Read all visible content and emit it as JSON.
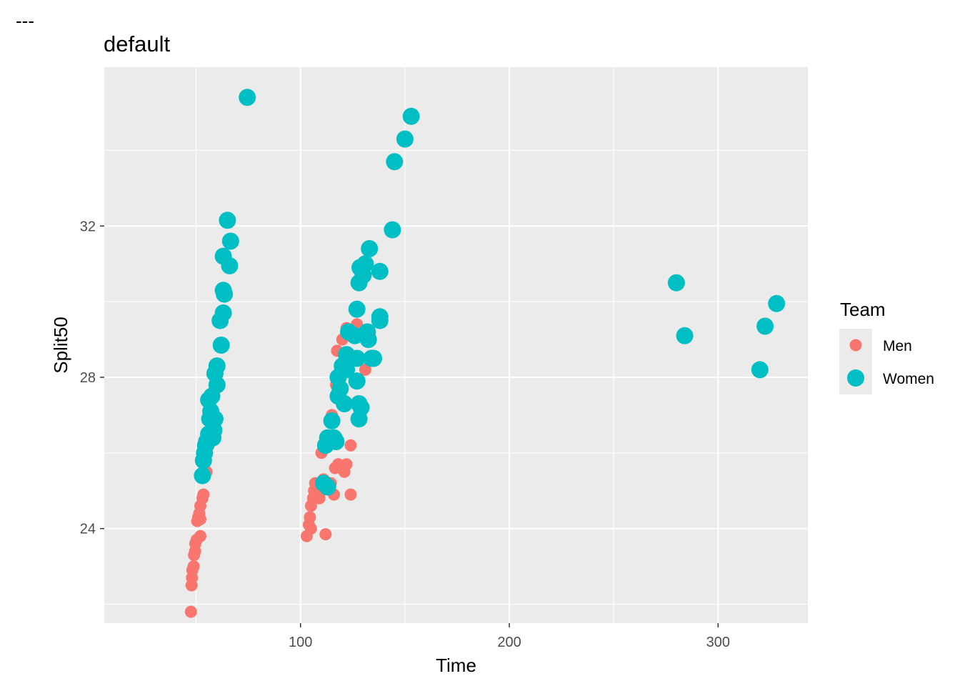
{
  "header": {
    "separator": "---",
    "title": "default"
  },
  "chart_data": {
    "type": "scatter",
    "title": "default",
    "xlabel": "Time",
    "ylabel": "Split50",
    "xlim": [
      6,
      343
    ],
    "ylim": [
      21.5,
      36.2
    ],
    "x_ticks": [
      100,
      200,
      300
    ],
    "y_ticks": [
      24,
      28,
      32
    ],
    "x_tick_labels": [
      "100",
      "200",
      "300"
    ],
    "y_tick_labels": [
      "24",
      "28",
      "32"
    ],
    "grid": true,
    "panel_background": "#ebebeb",
    "legend": {
      "title": "Team",
      "position": "right",
      "entries": [
        "Men",
        "Women"
      ]
    },
    "series": [
      {
        "name": "Men",
        "color": "#f8766d",
        "points": [
          [
            47.5,
            21.8
          ],
          [
            47.8,
            22.5
          ],
          [
            48,
            22.7
          ],
          [
            48.2,
            22.9
          ],
          [
            48.8,
            23
          ],
          [
            49,
            23.3
          ],
          [
            49.5,
            23.4
          ],
          [
            49.6,
            23.6
          ],
          [
            50.2,
            23.7
          ],
          [
            52,
            23.8
          ],
          [
            50.5,
            24.2
          ],
          [
            51,
            24.3
          ],
          [
            52,
            24.25
          ],
          [
            51.5,
            24.4
          ],
          [
            52,
            24.6
          ],
          [
            53,
            24.8
          ],
          [
            53.5,
            24.9
          ],
          [
            55,
            25.5
          ],
          [
            56,
            26.2
          ],
          [
            57,
            27
          ],
          [
            58,
            27.6
          ],
          [
            59,
            28
          ],
          [
            62,
            28.8
          ],
          [
            103,
            23.8
          ],
          [
            104,
            24.1
          ],
          [
            105,
            24
          ],
          [
            104.5,
            24.3
          ],
          [
            105,
            24.6
          ],
          [
            106,
            24.8
          ],
          [
            106.5,
            25
          ],
          [
            107,
            25.2
          ],
          [
            108,
            24.9
          ],
          [
            109,
            24.8
          ],
          [
            110,
            25
          ],
          [
            111,
            25.3
          ],
          [
            112,
            23.85
          ],
          [
            114.5,
            25.2
          ],
          [
            116,
            24.9
          ],
          [
            116.5,
            25.6
          ],
          [
            118,
            25.7
          ],
          [
            121,
            25.5
          ],
          [
            122,
            25.7
          ],
          [
            124,
            24.9
          ],
          [
            110,
            26
          ],
          [
            115,
            27
          ],
          [
            117,
            27.8
          ],
          [
            117.5,
            28.7
          ],
          [
            120,
            29
          ],
          [
            122,
            29.3
          ],
          [
            124,
            26.2
          ],
          [
            127,
            29.4
          ],
          [
            131,
            28.2
          ]
        ]
      },
      {
        "name": "Women",
        "color": "#00bfc4",
        "points": [
          [
            53,
            25.4
          ],
          [
            53.5,
            25.8
          ],
          [
            54,
            26
          ],
          [
            54.5,
            26.2
          ],
          [
            55,
            26.3
          ],
          [
            56,
            26.5
          ],
          [
            56.5,
            26.9
          ],
          [
            57,
            27.1
          ],
          [
            58,
            26.4
          ],
          [
            58.5,
            26.6
          ],
          [
            59,
            26.9
          ],
          [
            56,
            27.4
          ],
          [
            57.5,
            27.5
          ],
          [
            60,
            27.8
          ],
          [
            59,
            28.1
          ],
          [
            60,
            28.3
          ],
          [
            62,
            28.85
          ],
          [
            61.5,
            29.5
          ],
          [
            63,
            29.7
          ],
          [
            63,
            30.3
          ],
          [
            63.5,
            30.2
          ],
          [
            63,
            31.2
          ],
          [
            66,
            30.95
          ],
          [
            66.5,
            31.6
          ],
          [
            65,
            32.15
          ],
          [
            74.5,
            35.4
          ],
          [
            111,
            25.2
          ],
          [
            113,
            25.1
          ],
          [
            112,
            26.2
          ],
          [
            113,
            26.4
          ],
          [
            115,
            26.85
          ],
          [
            116,
            26.4
          ],
          [
            117,
            26.3
          ],
          [
            118,
            27.5
          ],
          [
            119,
            27.7
          ],
          [
            121,
            27.3
          ],
          [
            118,
            28
          ],
          [
            120,
            28.3
          ],
          [
            122,
            28.6
          ],
          [
            122,
            28.2
          ],
          [
            123,
            29.2
          ],
          [
            126,
            29.1
          ],
          [
            127,
            28.5
          ],
          [
            127,
            27.9
          ],
          [
            128,
            27.3
          ],
          [
            128,
            26.9
          ],
          [
            129,
            27.2
          ],
          [
            127,
            29.8
          ],
          [
            128,
            30.5
          ],
          [
            130,
            30.7
          ],
          [
            128.5,
            30.9
          ],
          [
            131,
            31
          ],
          [
            132,
            29.2
          ],
          [
            132.5,
            29
          ],
          [
            133,
            31.4
          ],
          [
            134,
            28.5
          ],
          [
            135,
            28.5
          ],
          [
            138,
            29.6
          ],
          [
            138,
            29.5
          ],
          [
            138,
            30.8
          ],
          [
            144,
            31.9
          ],
          [
            145,
            33.7
          ],
          [
            150,
            34.3
          ],
          [
            153,
            34.9
          ],
          [
            280,
            30.5
          ],
          [
            284,
            29.1
          ],
          [
            320,
            28.2
          ],
          [
            322.5,
            29.35
          ],
          [
            328,
            29.95
          ]
        ]
      }
    ]
  }
}
